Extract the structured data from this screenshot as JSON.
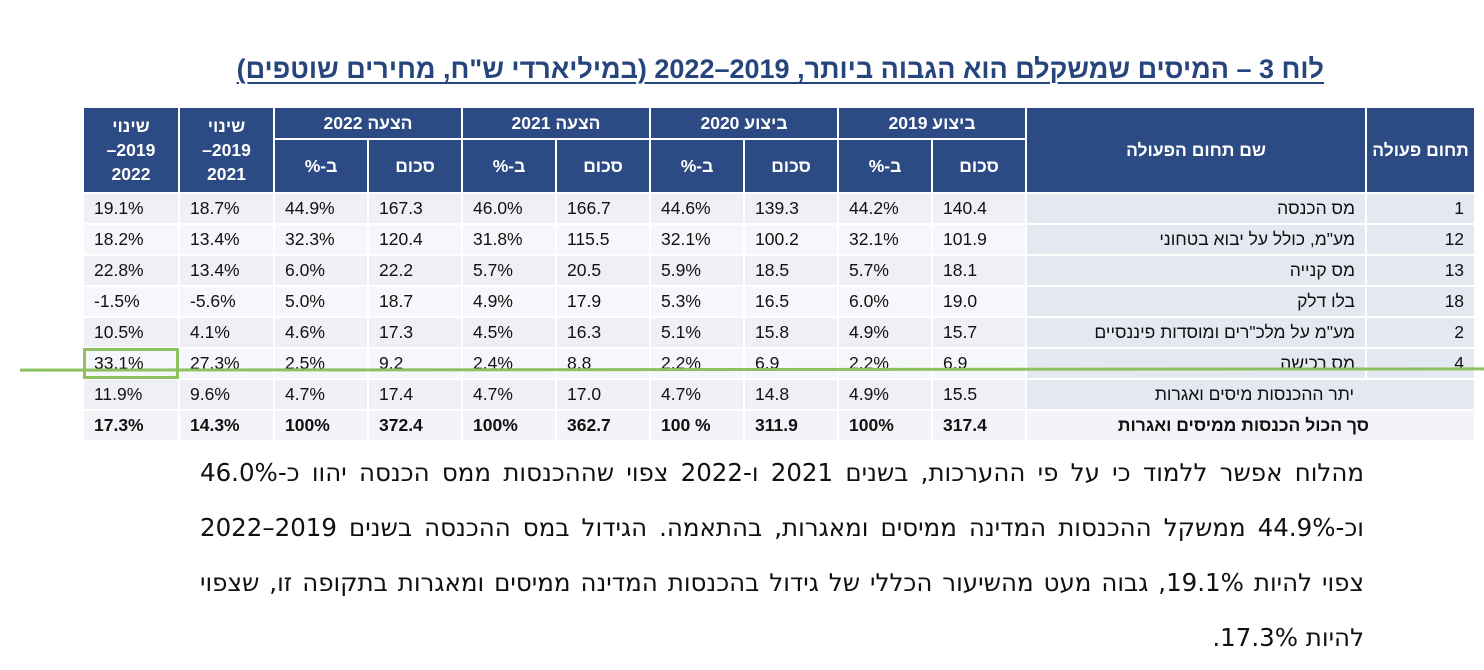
{
  "title": "לוח 3 – המיסים שמשקלם הוא הגבוה ביותר, 2019–2022 (במיליארדי ש\"ח, מחירים שוטפים)",
  "headers": {
    "code": "תחום פעולה",
    "name": "שם תחום הפעולה",
    "y2019": "ביצוע 2019",
    "y2020": "ביצוע 2020",
    "y2021": "הצעה 2021",
    "y2022": "הצעה 2022",
    "change2021": "שינוי 2019– 2021",
    "change2022": "שינוי 2019– 2022",
    "amount": "סכום",
    "percent": "ב-%"
  },
  "rows": [
    {
      "code": "1",
      "name": "מס הכנסה",
      "a2019": "140.4",
      "p2019": "44.2%",
      "a2020": "139.3",
      "p2020": "44.6%",
      "a2021": "166.7",
      "p2021": "46.0%",
      "a2022": "167.3",
      "p2022": "44.9%",
      "c2021": "18.7%",
      "c2022": "19.1%"
    },
    {
      "code": "12",
      "name": "מע\"מ, כולל על יבוא בטחוני",
      "a2019": "101.9",
      "p2019": "32.1%",
      "a2020": "100.2",
      "p2020": "32.1%",
      "a2021": "115.5",
      "p2021": "31.8%",
      "a2022": "120.4",
      "p2022": "32.3%",
      "c2021": "13.4%",
      "c2022": "18.2%"
    },
    {
      "code": "13",
      "name": "מס קנייה",
      "a2019": "18.1",
      "p2019": "5.7%",
      "a2020": "18.5",
      "p2020": "5.9%",
      "a2021": "20.5",
      "p2021": "5.7%",
      "a2022": "22.2",
      "p2022": "6.0%",
      "c2021": "13.4%",
      "c2022": "22.8%"
    },
    {
      "code": "18",
      "name": "בלו דלק",
      "a2019": "19.0",
      "p2019": "6.0%",
      "a2020": "16.5",
      "p2020": "5.3%",
      "a2021": "17.9",
      "p2021": "4.9%",
      "a2022": "18.7",
      "p2022": "5.0%",
      "c2021": "-5.6%",
      "c2022": "-1.5%"
    },
    {
      "code": "2",
      "name": "מע\"מ על מלכ\"רים ומוסדות פיננסיים",
      "a2019": "15.7",
      "p2019": "4.9%",
      "a2020": "15.8",
      "p2020": "5.1%",
      "a2021": "16.3",
      "p2021": "4.5%",
      "a2022": "17.3",
      "p2022": "4.6%",
      "c2021": "4.1%",
      "c2022": "10.5%"
    },
    {
      "code": "4",
      "name": "מס רכישה",
      "a2019": "6.9",
      "p2019": "2.2%",
      "a2020": "6.9",
      "p2020": "2.2%",
      "a2021": "8.8",
      "p2021": "2.4%",
      "a2022": "9.2",
      "p2022": "2.5%",
      "c2021": "27.3%",
      "c2022": "33.1%"
    },
    {
      "code": "",
      "name": "יתר ההכנסות מיסים ואגרות",
      "a2019": "15.5",
      "p2019": "4.9%",
      "a2020": "14.8",
      "p2020": "4.7%",
      "a2021": "17.0",
      "p2021": "4.7%",
      "a2022": "17.4",
      "p2022": "4.7%",
      "c2021": "9.6%",
      "c2022": "11.9%"
    }
  ],
  "total": {
    "name": "סך הכול הכנסות ממיסים ואגרות",
    "a2019": "317.4",
    "p2019": "100%",
    "a2020": "311.9",
    "p2020": "100 %",
    "a2021": "362.7",
    "p2021": "100%",
    "a2022": "372.4",
    "p2022": "100%",
    "c2021": "14.3%",
    "c2022": "17.3%"
  },
  "paragraph": "מהלוח אפשר ללמוד כי על פי ההערכות, בשנים 2021 ו-2022 צפוי שההכנסות ממס הכנסה יהוו כ-46.0% וכ-44.9% ממשקל ההכנסות המדינה ממיסים ומאגרות, בהתאמה. הגידול במס ההכנסה בשנים 2019–2022 צפוי להיות 19.1%, גבוה מעט מהשיעור הכללי של גידול בהכנסות המדינה ממיסים ומאגרות בתקופה זו, שצפוי להיות 17.3%.",
  "colors": {
    "header_bg": "#2c4a84",
    "title": "#27457d",
    "highlight": "#8dc05f",
    "row_label_bg": "#e4e8f1"
  }
}
